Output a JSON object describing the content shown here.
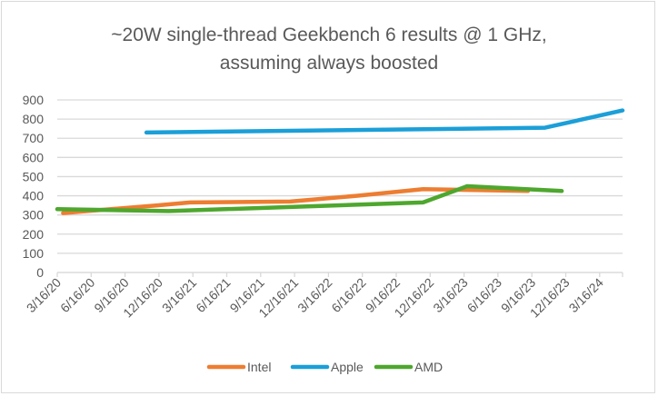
{
  "chart_data": {
    "type": "line",
    "title": "~20W single-thread Geekbench 6 results @ 1 GHz, assuming always boosted",
    "title_lines": [
      "~20W single-thread Geekbench 6 results @ 1 GHz,",
      "assuming always boosted"
    ],
    "xlabel": "",
    "ylabel": "",
    "x_type": "date",
    "xlim": [
      "2020-03-16",
      "2024-06-16"
    ],
    "ylim": [
      0,
      900
    ],
    "y_ticks": [
      "0",
      "100",
      "200",
      "300",
      "400",
      "500",
      "600",
      "700",
      "800",
      "900"
    ],
    "x_ticks": [
      "3/16/20",
      "6/16/20",
      "9/16/20",
      "12/16/20",
      "3/16/21",
      "6/16/21",
      "9/16/21",
      "12/16/21",
      "3/16/22",
      "6/16/22",
      "9/16/22",
      "12/16/22",
      "3/16/23",
      "6/16/23",
      "9/16/23",
      "12/16/23",
      "3/16/24"
    ],
    "grid": true,
    "legend_position": "bottom",
    "series": [
      {
        "name": "Intel",
        "color": "#ED7D31",
        "points": [
          [
            "2020-04-01",
            310
          ],
          [
            "2020-12-16",
            350
          ],
          [
            "2021-03-16",
            365
          ],
          [
            "2021-12-16",
            370
          ],
          [
            "2022-06-16",
            400
          ],
          [
            "2022-12-16",
            435
          ],
          [
            "2023-09-30",
            425
          ]
        ]
      },
      {
        "name": "Apple",
        "color": "#1B9FD8",
        "points": [
          [
            "2020-11-16",
            730
          ],
          [
            "2023-11-16",
            755
          ],
          [
            "2024-06-16",
            845
          ]
        ]
      },
      {
        "name": "AMD",
        "color": "#4EA72E",
        "points": [
          [
            "2020-03-16",
            330
          ],
          [
            "2021-01-16",
            320
          ],
          [
            "2022-12-16",
            365
          ],
          [
            "2023-04-16",
            450
          ],
          [
            "2024-01-01",
            425
          ]
        ]
      }
    ]
  }
}
